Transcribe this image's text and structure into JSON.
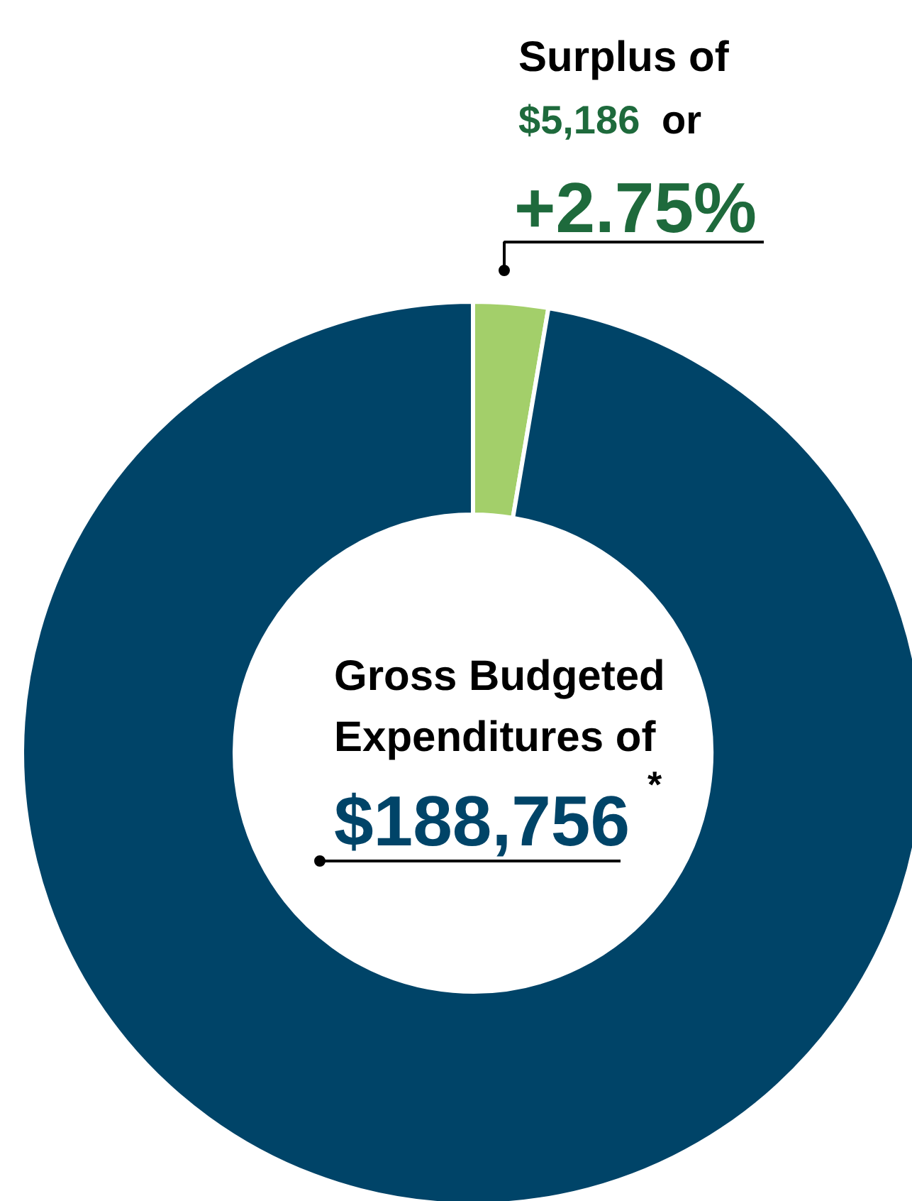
{
  "chart_data": {
    "type": "donut",
    "categories": [
      null,
      null
    ],
    "values": [
      5186,
      188756
    ],
    "colors": [
      "#a3cf6a",
      "#004468"
    ],
    "value_labels": [
      null,
      "$188,756"
    ],
    "annotations": [
      "Surplus of",
      "$5,186",
      "or",
      "+2.75%",
      "Gross Budgeted",
      "Expenditures of",
      "*"
    ]
  }
}
